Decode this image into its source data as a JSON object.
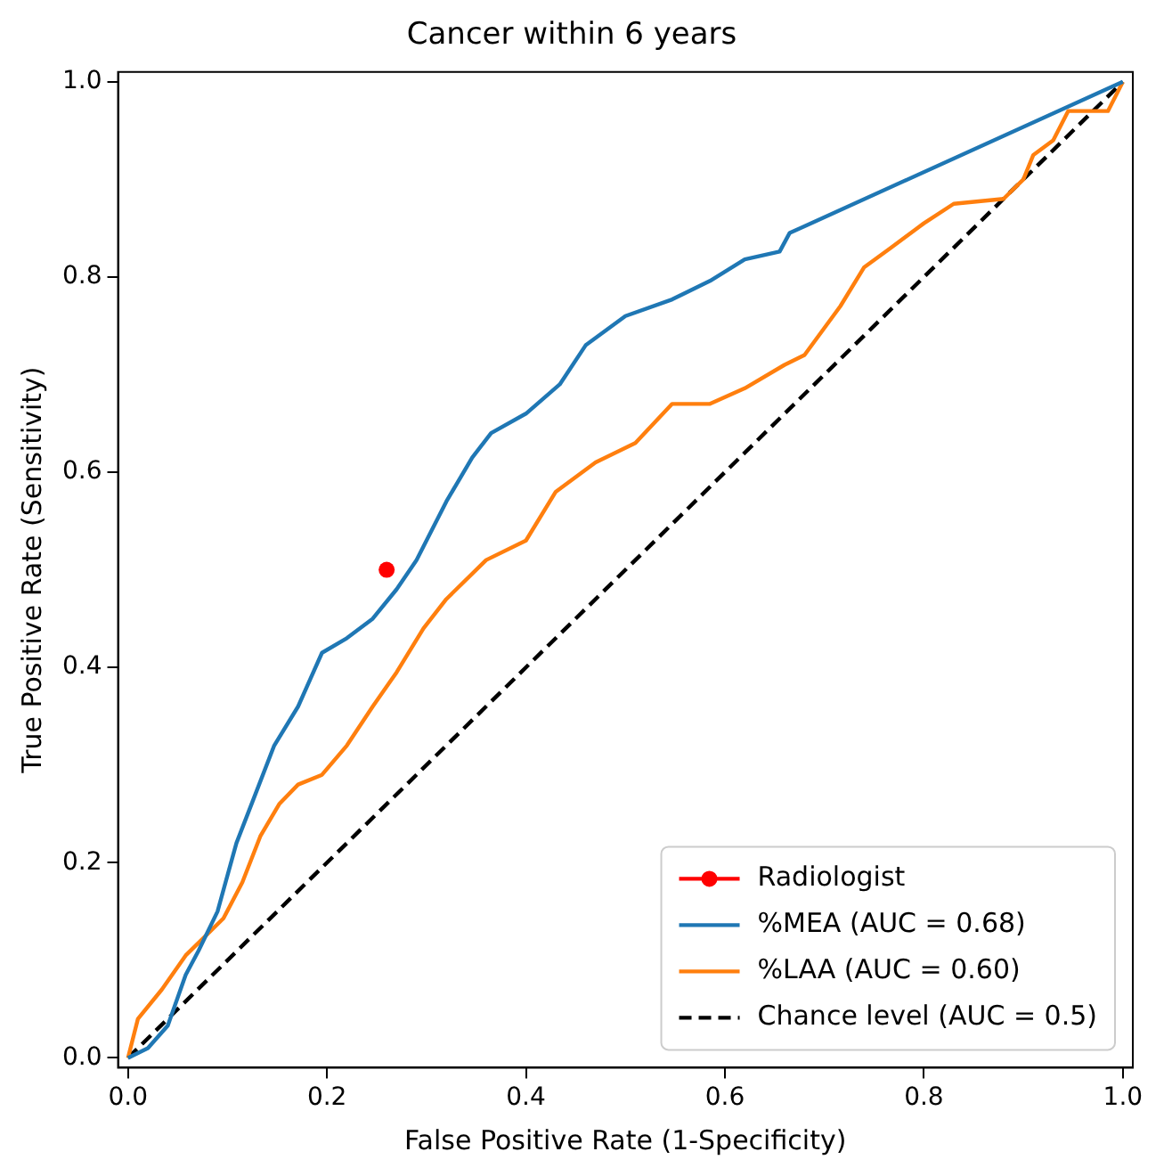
{
  "chart_data": {
    "type": "line",
    "title": "Cancer within 6 years",
    "xlabel": "False Positive Rate (1-Specificity)",
    "ylabel": "True Positive Rate (Sensitivity)",
    "xlim": [
      -0.01,
      1.01
    ],
    "ylim": [
      -0.01,
      1.01
    ],
    "xticks": [
      {
        "value": 0,
        "label": "0.0"
      },
      {
        "value": 0.2,
        "label": "0.2"
      },
      {
        "value": 0.4,
        "label": "0.4"
      },
      {
        "value": 0.6,
        "label": "0.6"
      },
      {
        "value": 0.8,
        "label": "0.8"
      },
      {
        "value": 1,
        "label": "1.0"
      }
    ],
    "yticks": [
      {
        "value": 0,
        "label": "0.0"
      },
      {
        "value": 0.2,
        "label": "0.2"
      },
      {
        "value": 0.4,
        "label": "0.4"
      },
      {
        "value": 0.6,
        "label": "0.6"
      },
      {
        "value": 0.8,
        "label": "0.8"
      },
      {
        "value": 1,
        "label": "1.0"
      }
    ],
    "grid": false,
    "legend": "bottom right",
    "line_style": "solid",
    "series": [
      {
        "name": "Radiologist",
        "type": "scatter",
        "marker": "circle",
        "color": "#ff0000",
        "x": [
          0.26
        ],
        "values": [
          0.5
        ]
      },
      {
        "name": "%MEA (AUC = 0.68)",
        "color": "#1f77b4",
        "x": [
          0,
          0.02,
          0.04,
          0.058,
          0.071,
          0.09,
          0.109,
          0.128,
          0.147,
          0.171,
          0.195,
          0.22,
          0.246,
          0.27,
          0.29,
          0.32,
          0.346,
          0.365,
          0.4,
          0.434,
          0.46,
          0.5,
          0.547,
          0.585,
          0.62,
          0.655,
          0.665,
          1
        ],
        "values": [
          0,
          0.01,
          0.033,
          0.085,
          0.11,
          0.15,
          0.22,
          0.27,
          0.32,
          0.36,
          0.415,
          0.43,
          0.45,
          0.48,
          0.51,
          0.57,
          0.615,
          0.64,
          0.66,
          0.69,
          0.73,
          0.76,
          0.777,
          0.796,
          0.818,
          0.826,
          0.845,
          1
        ]
      },
      {
        "name": "%LAA (AUC = 0.60)",
        "color": "#ff7f0e",
        "x": [
          0,
          0.01,
          0.034,
          0.058,
          0.077,
          0.096,
          0.115,
          0.133,
          0.152,
          0.171,
          0.195,
          0.22,
          0.246,
          0.27,
          0.297,
          0.32,
          0.36,
          0.4,
          0.43,
          0.47,
          0.51,
          0.547,
          0.585,
          0.62,
          0.66,
          0.68,
          0.716,
          0.74,
          0.767,
          0.8,
          0.83,
          0.88,
          0.9,
          0.91,
          0.93,
          0.945,
          0.985,
          1
        ],
        "values": [
          0,
          0.04,
          0.07,
          0.105,
          0.124,
          0.143,
          0.18,
          0.227,
          0.26,
          0.28,
          0.29,
          0.32,
          0.36,
          0.395,
          0.44,
          0.47,
          0.51,
          0.53,
          0.58,
          0.61,
          0.63,
          0.67,
          0.67,
          0.686,
          0.71,
          0.72,
          0.77,
          0.81,
          0.83,
          0.855,
          0.875,
          0.88,
          0.9,
          0.925,
          0.94,
          0.97,
          0.97,
          1
        ]
      },
      {
        "name": "Chance level (AUC = 0.5)",
        "color": "#000000",
        "line_style": "dashed",
        "x": [
          0,
          1
        ],
        "values": [
          0,
          1
        ]
      }
    ]
  }
}
